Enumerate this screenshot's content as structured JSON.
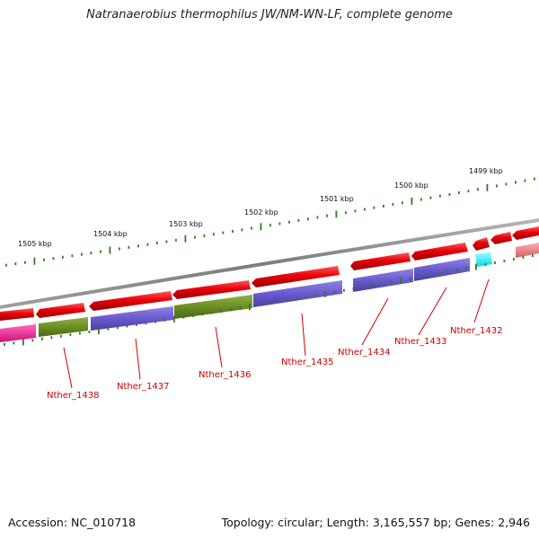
{
  "title": "Natranaerobius thermophilus JW/NM-WN-LF, complete genome",
  "accession": "Accession: NC_010718",
  "info": "Topology: circular; Length: 3,165,557 bp; Genes: 2,946",
  "colors": {
    "backbone": "#8a8a8a",
    "cds": "#e8000b",
    "cds_light": "#f08080",
    "cog_purple": "#6a5acd",
    "cog_olive": "#6b8e23",
    "cog_magenta": "#ff1493",
    "cog_cyan": "#00ffff",
    "tick": "#2e7d1e",
    "label": "#cc0000"
  },
  "scale_labels": [
    "1505 kbp",
    "1504 kbp",
    "1503 kbp",
    "1502 kbp",
    "1501 kbp",
    "1500 kbp",
    "1499 kbp"
  ],
  "gene_labels": [
    "Nther_1438",
    "Nther_1437",
    "Nther_1436",
    "Nther_1435",
    "Nther_1434",
    "Nther_1433",
    "Nther_1432"
  ]
}
